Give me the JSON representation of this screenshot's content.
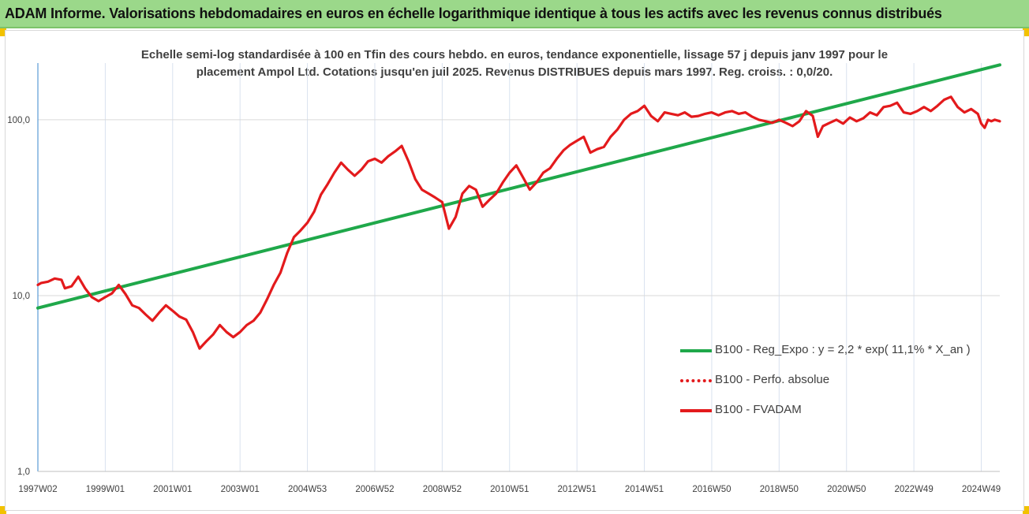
{
  "header": {
    "title": "ADAM Informe. Valorisations hebdomadaires en euros en échelle logarithmique identique à tous les actifs avec les revenus connus distribués"
  },
  "chart_data": {
    "type": "line",
    "title_line1": "Echelle semi-log standardisée à 100 en Tfin des cours hebdo. en euros, tendance exponentielle, lissage 57 j depuis janv 1997 pour le",
    "title_line2": "placement Ampol Ltd. Cotations jusqu'en juil 2025. Revenus DISTRIBUES depuis mars 1997. Reg. croiss. : 0,0/20.",
    "y_scale": "log",
    "ylim": [
      1,
      210
    ],
    "y_ticks": [
      1,
      10,
      100
    ],
    "y_tick_labels": [
      "1,0",
      "10,0",
      "100,0"
    ],
    "xlim": [
      1997.0,
      2025.55
    ],
    "x_ticks": [
      1997.0,
      1999.0,
      2001.0,
      2003.0,
      2005.0,
      2007.0,
      2009.0,
      2011.0,
      2013.0,
      2015.0,
      2017.0,
      2019.0,
      2021.0,
      2023.0,
      2025.0
    ],
    "x_tick_labels": [
      "1997W02",
      "1999W01",
      "2001W01",
      "2003W01",
      "2004W53",
      "2006W52",
      "2008W52",
      "2010W51",
      "2012W51",
      "2014W51",
      "2016W50",
      "2018W50",
      "2020W50",
      "2022W49",
      "2024W49"
    ],
    "grid": "vertical",
    "legend_position": "bottom-right",
    "series": [
      {
        "name": "B100 - Reg_Expo : y = 2,2 * exp( 11,1% *  X_an )",
        "color": "#1fa84a",
        "style": "solid",
        "x": [
          1997.0,
          2025.55
        ],
        "y": [
          8.5,
          205
        ]
      },
      {
        "name": "B100 - Perfo. absolue",
        "color": "#e31a1c",
        "style": "dotted",
        "x": [],
        "y": []
      },
      {
        "name": "B100 - FVADAM",
        "color": "#e31a1c",
        "style": "solid",
        "x": [
          1997.0,
          1997.1,
          1997.3,
          1997.5,
          1997.7,
          1997.8,
          1998.0,
          1998.2,
          1998.4,
          1998.6,
          1998.8,
          1999.0,
          1999.2,
          1999.4,
          1999.6,
          1999.8,
          2000.0,
          2000.2,
          2000.4,
          2000.6,
          2000.8,
          2001.0,
          2001.2,
          2001.4,
          2001.6,
          2001.8,
          2002.0,
          2002.2,
          2002.4,
          2002.6,
          2002.8,
          2003.0,
          2003.2,
          2003.4,
          2003.6,
          2003.8,
          2004.0,
          2004.2,
          2004.4,
          2004.6,
          2004.8,
          2005.0,
          2005.2,
          2005.4,
          2005.6,
          2005.8,
          2006.0,
          2006.2,
          2006.4,
          2006.6,
          2006.8,
          2007.0,
          2007.2,
          2007.4,
          2007.6,
          2007.8,
          2008.0,
          2008.2,
          2008.4,
          2008.6,
          2008.8,
          2009.0,
          2009.2,
          2009.4,
          2009.6,
          2009.8,
          2010.0,
          2010.2,
          2010.4,
          2010.6,
          2010.8,
          2011.0,
          2011.2,
          2011.4,
          2011.6,
          2011.8,
          2012.0,
          2012.2,
          2012.4,
          2012.6,
          2012.8,
          2013.0,
          2013.2,
          2013.4,
          2013.6,
          2013.8,
          2014.0,
          2014.2,
          2014.4,
          2014.6,
          2014.8,
          2015.0,
          2015.2,
          2015.4,
          2015.6,
          2015.8,
          2016.0,
          2016.2,
          2016.4,
          2016.6,
          2016.8,
          2017.0,
          2017.2,
          2017.4,
          2017.6,
          2017.8,
          2018.0,
          2018.2,
          2018.4,
          2018.6,
          2018.8,
          2019.0,
          2019.2,
          2019.4,
          2019.6,
          2019.8,
          2020.0,
          2020.15,
          2020.3,
          2020.5,
          2020.7,
          2020.9,
          2021.1,
          2021.3,
          2021.5,
          2021.7,
          2021.9,
          2022.1,
          2022.3,
          2022.5,
          2022.7,
          2022.9,
          2023.1,
          2023.3,
          2023.5,
          2023.7,
          2023.9,
          2024.1,
          2024.3,
          2024.5,
          2024.7,
          2024.9,
          2025.0,
          2025.1,
          2025.2,
          2025.3,
          2025.4,
          2025.55
        ],
        "y": [
          11.5,
          11.8,
          12.0,
          12.5,
          12.3,
          11.0,
          11.3,
          12.8,
          11.0,
          9.8,
          9.3,
          9.8,
          10.3,
          11.5,
          10.2,
          8.8,
          8.5,
          7.8,
          7.2,
          8.0,
          8.8,
          8.2,
          7.6,
          7.3,
          6.2,
          5.0,
          5.5,
          6.0,
          6.8,
          6.2,
          5.8,
          6.2,
          6.8,
          7.2,
          8.0,
          9.5,
          11.5,
          13.5,
          17.5,
          21.5,
          23.5,
          26.0,
          30.0,
          37.5,
          43.0,
          50.0,
          57.0,
          52.0,
          48.0,
          52.0,
          58.0,
          60.0,
          57.0,
          62.0,
          66.0,
          71.0,
          58.0,
          46.0,
          40.0,
          38.0,
          36.0,
          34.0,
          24.0,
          28.0,
          38.0,
          42.0,
          40.0,
          32.0,
          35.0,
          38.0,
          44.0,
          50.0,
          55.0,
          47.0,
          40.0,
          44.0,
          50.0,
          53.0,
          60.0,
          67.0,
          72.0,
          76.0,
          80.0,
          65.0,
          68.0,
          70.0,
          80.0,
          88.0,
          100.0,
          108.0,
          112.0,
          120.0,
          105.0,
          98.0,
          110.0,
          108.0,
          106.0,
          110.0,
          104.0,
          105.0,
          108.0,
          110.0,
          106.0,
          110.0,
          112.0,
          108.0,
          110.0,
          104.0,
          100.0,
          98.0,
          96.0,
          100.0,
          96.0,
          92.0,
          98.0,
          112.0,
          105.0,
          80.0,
          92.0,
          96.0,
          100.0,
          95.0,
          103.0,
          98.0,
          102.0,
          110.0,
          106.0,
          118.0,
          120.0,
          125.0,
          110.0,
          108.0,
          112.0,
          118.0,
          112.0,
          120.0,
          130.0,
          135.0,
          118.0,
          110.0,
          115.0,
          108.0,
          95.0,
          90.0,
          100.0,
          98.0,
          100.0,
          98.0
        ]
      }
    ]
  }
}
